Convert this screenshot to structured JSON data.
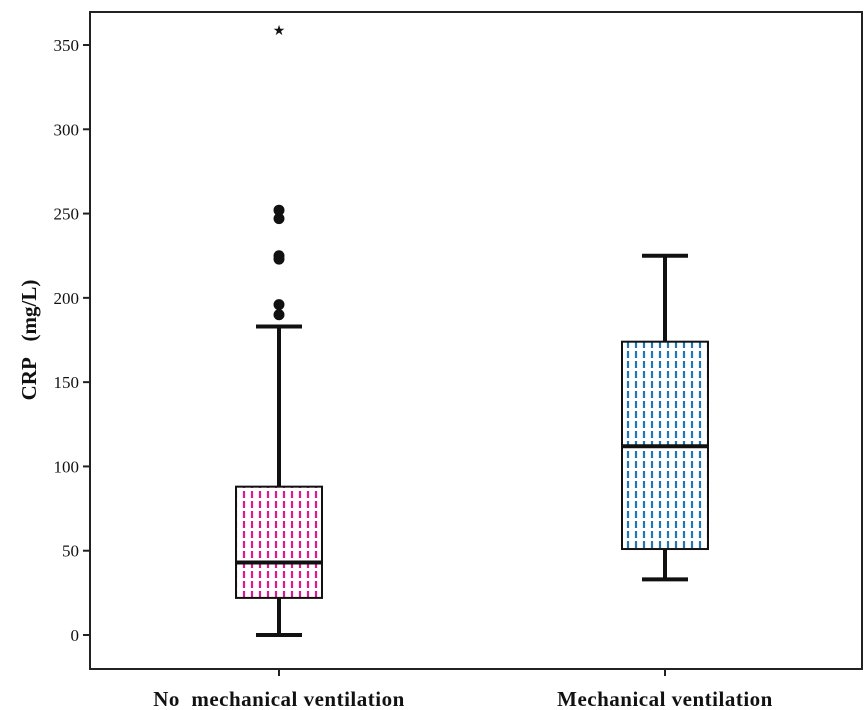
{
  "chart_data": {
    "type": "boxplot",
    "ylabel": "CRP   (mg/L)",
    "ylim": [
      -20,
      373
    ],
    "yticks": [
      0,
      50,
      100,
      150,
      200,
      250,
      300,
      350
    ],
    "grid": false,
    "categories": [
      "No  mechanical ventilation",
      "Mechanical ventilation"
    ],
    "series": [
      {
        "category": "No  mechanical ventilation",
        "color": "#e0188c",
        "pattern": "dashed-vertical",
        "whisker_low": 0,
        "q1": 22,
        "median": 43,
        "q3": 88,
        "whisker_high": 183,
        "outliers": [
          190,
          196,
          223,
          225,
          247,
          252
        ],
        "extremes": [
          359
        ]
      },
      {
        "category": "Mechanical ventilation",
        "color": "#1f78b4",
        "pattern": "dashed-vertical",
        "whisker_low": 33,
        "q1": 51,
        "median": 112,
        "q3": 174,
        "whisker_high": 225,
        "outliers": [],
        "extremes": []
      }
    ]
  }
}
